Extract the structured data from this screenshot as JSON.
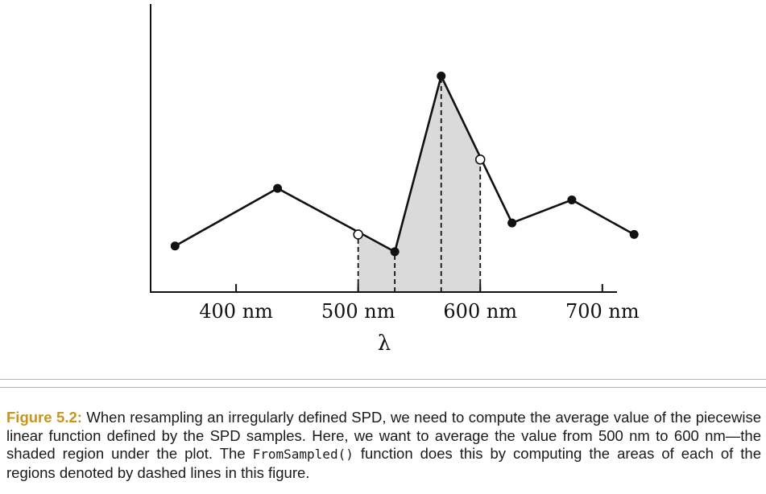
{
  "chart_data": {
    "type": "line",
    "xlabel": "λ",
    "ylabel": "",
    "xlim": [
      330,
      712
    ],
    "ylim": [
      0,
      10
    ],
    "x_ticks": [
      400,
      500,
      600,
      700
    ],
    "x_tick_labels": [
      "400 nm",
      "500 nm",
      "600 nm",
      "700 nm"
    ],
    "grid": false,
    "legend": "none",
    "samples": [
      {
        "x": 350,
        "y": 1.6
      },
      {
        "x": 434,
        "y": 3.6
      },
      {
        "x": 530,
        "y": 1.4
      },
      {
        "x": 568,
        "y": 7.5
      },
      {
        "x": 626,
        "y": 2.4
      },
      {
        "x": 675,
        "y": 3.2
      },
      {
        "x": 726,
        "y": 2.0
      }
    ],
    "resampled_endpoints": [
      {
        "x": 500,
        "y": 2.0
      },
      {
        "x": 600,
        "y": 4.6
      }
    ],
    "shaded_region": [
      500,
      600
    ],
    "dashed_lines_x": [
      500,
      530,
      568,
      600
    ],
    "colors": {
      "line": "#111111",
      "fill": "#dadada",
      "open_point": "#ffffff"
    }
  },
  "caption": {
    "label": "Figure 5.2:",
    "text_before_code": " When resampling an irregularly defined SPD, we need to compute the average value of the piecewise linear function defined by the SPD samples. Here, we want to average the value from 500 nm to 600 nm—the shaded region under the plot. The ",
    "code": "FromSampled()",
    "text_after_code": " function does this by computing the areas of each of the regions denoted by dashed lines in this figure."
  }
}
